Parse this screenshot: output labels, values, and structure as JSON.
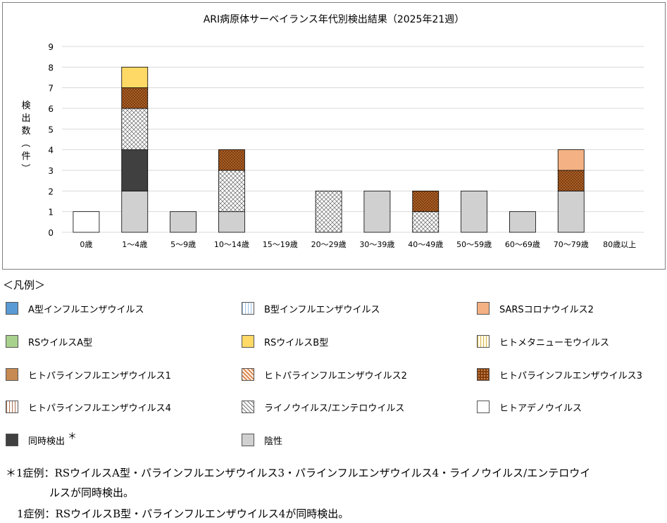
{
  "chart_data": {
    "type": "bar",
    "stacked": true,
    "title": "ARI病原体サーベイランス年代別検出結果（2025年21週）",
    "ylabel": "検出数（件）",
    "ylim": [
      0,
      9
    ],
    "yticks": [
      "0",
      "1",
      "2",
      "3",
      "4",
      "5",
      "6",
      "7",
      "8",
      "9"
    ],
    "grid": true,
    "categories": [
      "0歳",
      "1～4歳",
      "5～9歳",
      "10～14歳",
      "15～19歳",
      "20～29歳",
      "30～39歳",
      "40～49歳",
      "50～59歳",
      "60～69歳",
      "70～79歳",
      "80歳以上"
    ],
    "series": [
      {
        "name": "陰性",
        "key": "negative",
        "values": [
          0,
          2,
          1,
          1,
          0,
          0,
          2,
          0,
          2,
          1,
          2,
          0
        ]
      },
      {
        "name": "同時検出",
        "key": "multi",
        "values": [
          0,
          2,
          0,
          0,
          0,
          0,
          0,
          0,
          0,
          0,
          0,
          0
        ]
      },
      {
        "name": "ヒトアデノウイルス",
        "key": "adeno",
        "values": [
          1,
          0,
          0,
          0,
          0,
          0,
          0,
          0,
          0,
          0,
          0,
          0
        ]
      },
      {
        "name": "ライノウイルス/エンテロウイルス",
        "key": "rhino",
        "values": [
          0,
          2,
          0,
          2,
          0,
          2,
          0,
          1,
          0,
          0,
          0,
          0
        ]
      },
      {
        "name": "ヒトパラインフルエンザウイルス3",
        "key": "hpiv3",
        "values": [
          0,
          1,
          0,
          1,
          0,
          0,
          0,
          1,
          0,
          0,
          1,
          0
        ]
      },
      {
        "name": "RSウイルスB型",
        "key": "rsvb",
        "values": [
          0,
          1,
          0,
          0,
          0,
          0,
          0,
          0,
          0,
          0,
          0,
          0
        ]
      },
      {
        "name": "SARSコロナウイルス2",
        "key": "sars",
        "values": [
          0,
          0,
          0,
          0,
          0,
          0,
          0,
          0,
          0,
          0,
          1,
          0
        ]
      }
    ]
  },
  "legend": {
    "heading": "＜凡例＞",
    "asterisk": "＊",
    "items": [
      {
        "label": "A型インフルエンザウイルス",
        "key": "fluA",
        "color": "#5b9bd5"
      },
      {
        "label": "B型インフルエンザウイルス",
        "key": "fluB",
        "color": "#dce9f7"
      },
      {
        "label": "SARSコロナウイルス2",
        "key": "sars",
        "color": "#f4b183"
      },
      {
        "label": "RSウイルスA型",
        "key": "rsva",
        "color": "#a9d18e"
      },
      {
        "label": "RSウイルスB型",
        "key": "rsvb",
        "color": "#ffd966"
      },
      {
        "label": "ヒトメタニューモウイルス",
        "key": "hmpv",
        "color": "#fff2cc"
      },
      {
        "label": "ヒトパラインフルエンザウイルス1",
        "key": "hpiv1",
        "color": "#c68a52"
      },
      {
        "label": "ヒトパラインフルエンザウイルス2",
        "key": "hpiv2",
        "color": "#f8cbad"
      },
      {
        "label": "ヒトパラインフルエンザウイルス3",
        "key": "hpiv3",
        "color": "#843c0c"
      },
      {
        "label": "ヒトパラインフルエンザウイルス4",
        "key": "hpiv4",
        "color": "#e8d5c8"
      },
      {
        "label": "ライノウイルス/エンテロウイルス",
        "key": "rhino",
        "color": "#ffffff"
      },
      {
        "label": "ヒトアデノウイルス",
        "key": "adeno",
        "color": "#ffffff"
      },
      {
        "label": "同時検出",
        "key": "multi",
        "color": "#404040"
      },
      {
        "label": "陰性",
        "key": "negative",
        "color": "#d0d0d0"
      }
    ]
  },
  "notes": {
    "line1": "＊1症例：RSウイルスA型・パラインフルエンザウイルス3・パラインフルエンザウイルス4・ライノウイルス/エンテロウイ",
    "line2": "ルスが同時検出。",
    "line3": "1症例：RSウイルスB型・パラインフルエンザウイルス4が同時検出。"
  }
}
